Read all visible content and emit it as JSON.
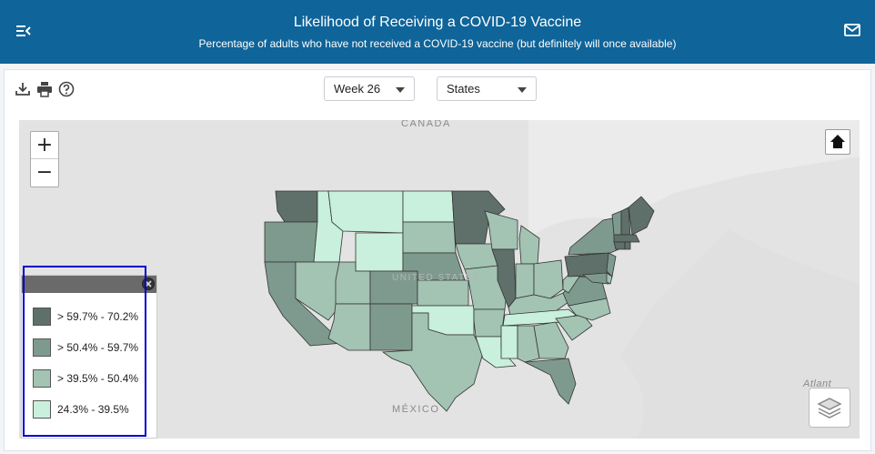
{
  "header": {
    "title": "Likelihood of Receiving a COVID-19 Vaccine",
    "subtitle": "Percentage of adults who have not received a COVID-19 vaccine (but definitely will once available)",
    "menu_icon": "menu-collapse-icon",
    "mail_icon": "mail-icon"
  },
  "toolbar": {
    "download_icon": "download-icon",
    "print_icon": "print-icon",
    "help_icon": "help-icon",
    "week_select": "Week 26",
    "geo_select": "States"
  },
  "map": {
    "labels": {
      "canada": "CANADA",
      "mexico": "MÉXICO",
      "atlantic": "Atlant",
      "us": "UNITED STATES"
    },
    "zoom_in": "+",
    "zoom_out": "−",
    "colors": {
      "c1": "#5f6f69",
      "c2": "#7e9a8e",
      "c3": "#a3c3b3",
      "c4": "#c8f0dc",
      "land": "#e3e3e3"
    }
  },
  "legend": {
    "items": [
      {
        "label": "> 59.7% - 70.2%",
        "color": "#5f6f69"
      },
      {
        "label": "> 50.4% - 59.7%",
        "color": "#7e9a8e"
      },
      {
        "label": "> 39.5% - 50.4%",
        "color": "#a3c3b3"
      },
      {
        "label": "24.3% - 39.5%",
        "color": "#c8f0dc"
      }
    ]
  }
}
